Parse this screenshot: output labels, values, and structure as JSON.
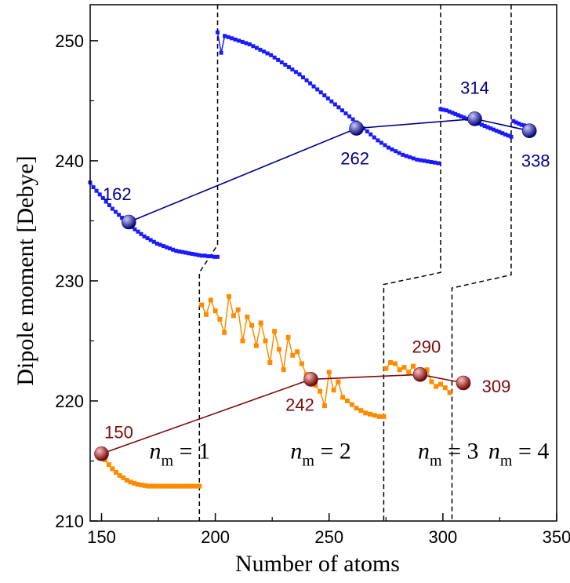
{
  "chart_data": {
    "type": "scatter",
    "xlabel": "Number of atoms",
    "ylabel": "Dipole moment [Debye]",
    "xlim": [
      145,
      350
    ],
    "ylim": [
      210,
      253
    ],
    "xticks": [
      150,
      200,
      250,
      300,
      350
    ],
    "yticks": [
      210,
      220,
      230,
      240,
      250
    ],
    "grid": false,
    "colors": {
      "blue_series": "#1a1aff",
      "blue_line": "#00008b",
      "orange_series": "#ff8c00",
      "red_line": "#7b0a0a",
      "axis": "#000000"
    },
    "series": [
      {
        "role": "blue-curve",
        "segments": [
          {
            "x_start": 145,
            "x_end": 201,
            "values": [
              238.2,
              237.8,
              237.5,
              237.2,
              236.9,
              236.6,
              236.3,
              236.0,
              235.75,
              235.5,
              235.25,
              235.0,
              234.75,
              234.5,
              234.3,
              234.1,
              233.9,
              233.7,
              233.55,
              233.4,
              233.25,
              233.1,
              233.0,
              232.9,
              232.8,
              232.7,
              232.6,
              232.5,
              232.45,
              232.4,
              232.35,
              232.3,
              232.25,
              232.2,
              232.15,
              232.1,
              232.1,
              232.05,
              232.05,
              232.0,
              232.0
            ]
          },
          {
            "x_start": 201,
            "x_end": 298,
            "values": [
              250.7,
              249.0,
              250.4,
              250.3,
              250.2,
              250.1,
              250.0,
              249.9,
              249.8,
              249.7,
              249.55,
              249.4,
              249.25,
              249.1,
              248.95,
              248.8,
              248.6,
              248.4,
              248.2,
              248.0,
              247.8,
              247.6,
              247.4,
              247.2,
              246.95,
              246.7,
              246.45,
              246.2,
              245.95,
              245.7,
              245.45,
              245.2,
              244.95,
              244.7,
              244.45,
              244.2,
              243.95,
              243.7,
              243.45,
              243.2,
              242.95,
              242.7,
              242.45,
              242.2,
              241.95,
              241.7,
              241.5,
              241.3,
              241.1,
              240.95,
              240.8,
              240.65,
              240.5,
              240.4,
              240.3,
              240.2,
              240.1,
              240.05,
              240.0,
              239.95,
              239.9,
              239.85,
              239.8
            ]
          },
          {
            "x_start": 299,
            "x_end": 330,
            "values": [
              244.3,
              244.25,
              244.2,
              244.1,
              244.0,
              243.9,
              243.8,
              243.7,
              243.6,
              243.5,
              243.4,
              243.3,
              243.2,
              243.1,
              243.0,
              242.9,
              242.8,
              242.7,
              242.6,
              242.5,
              242.4,
              242.3,
              242.2,
              242.1,
              242.0
            ]
          },
          {
            "x_start": 331,
            "x_end": 338,
            "values": [
              243.3,
              243.2,
              243.1,
              243.0,
              242.95,
              242.9,
              242.85
            ]
          }
        ]
      },
      {
        "role": "orange-curve",
        "segments": [
          {
            "x_start": 150,
            "x_end": 193,
            "values": [
              215.6,
              215.1,
              214.7,
              214.35,
              214.05,
              213.8,
              213.6,
              213.4,
              213.25,
              213.15,
              213.05,
              213.0,
              212.95,
              212.9,
              212.9,
              212.9,
              212.9,
              212.9,
              212.9,
              212.9,
              212.9,
              212.9,
              212.9,
              212.9,
              212.9,
              212.9,
              212.9,
              212.9
            ]
          },
          {
            "x_start": 194,
            "x_end": 274,
            "values": [
              228.0,
              227.2,
              228.4,
              227.5,
              226.8,
              225.7,
              228.7,
              227.1,
              227.6,
              225.0,
              227.0,
              226.3,
              224.6,
              226.5,
              225.0,
              223.2,
              225.8,
              224.3,
              222.6,
              225.3,
              223.8,
              224.1,
              223.1,
              222.2,
              221.9,
              221.3,
              220.8,
              219.6,
              222.4,
              220.9,
              221.6,
              220.3,
              220.0,
              219.7,
              219.4,
              219.2,
              219.0,
              218.9,
              218.8,
              218.7,
              218.7
            ]
          },
          {
            "x_start": 275,
            "x_end": 303,
            "values": [
              222.7,
              223.2,
              223.1,
              222.6,
              222.8,
              222.4,
              222.9,
              222.0,
              222.3,
              222.6,
              221.6,
              221.2,
              221.4,
              221.1,
              220.7
            ]
          }
        ]
      },
      {
        "role": "blue-line",
        "name": "",
        "points": [
          {
            "x": 162,
            "y": 234.9,
            "label": "162"
          },
          {
            "x": 262,
            "y": 242.7,
            "label": "262"
          },
          {
            "x": 314,
            "y": 243.5,
            "label": "314"
          },
          {
            "x": 338,
            "y": 242.5,
            "label": "338"
          }
        ]
      },
      {
        "role": "red-line",
        "name": "",
        "points": [
          {
            "x": 150,
            "y": 215.6,
            "label": "150"
          },
          {
            "x": 242,
            "y": 221.8,
            "label": "242"
          },
          {
            "x": 290,
            "y": 222.2,
            "label": "290"
          },
          {
            "x": 309,
            "y": 221.5,
            "label": "309"
          }
        ]
      }
    ],
    "dashed_boundaries": [
      {
        "upper_x": 201,
        "lower_x": 193,
        "upper_y": 233.0,
        "lower_y": 230.7,
        "label_prefix": "n",
        "label_sub": "m",
        "label_suffix": " = 1"
      },
      {
        "upper_x": 299,
        "lower_x": 274,
        "upper_y": 230.7,
        "lower_y": 229.7,
        "label_prefix": "n",
        "label_sub": "m",
        "label_suffix": " = 2"
      },
      {
        "upper_x": 330,
        "lower_x": 304,
        "upper_y": 230.5,
        "lower_y": 229.4,
        "label_prefix": "n",
        "label_sub": "m",
        "label_suffix": " = 3"
      }
    ],
    "region_labels": [
      {
        "prefix": "n",
        "sub": "m",
        "suffix": " = 1",
        "x": 171,
        "y": 215.2
      },
      {
        "prefix": "n",
        "sub": "m",
        "suffix": " = 2",
        "x": 233,
        "y": 215.2
      },
      {
        "prefix": "n",
        "sub": "m",
        "suffix": " = 3",
        "x": 289,
        "y": 215.2
      },
      {
        "prefix": "n",
        "sub": "m",
        "suffix": " = 4",
        "x": 320,
        "y": 215.2
      }
    ]
  }
}
